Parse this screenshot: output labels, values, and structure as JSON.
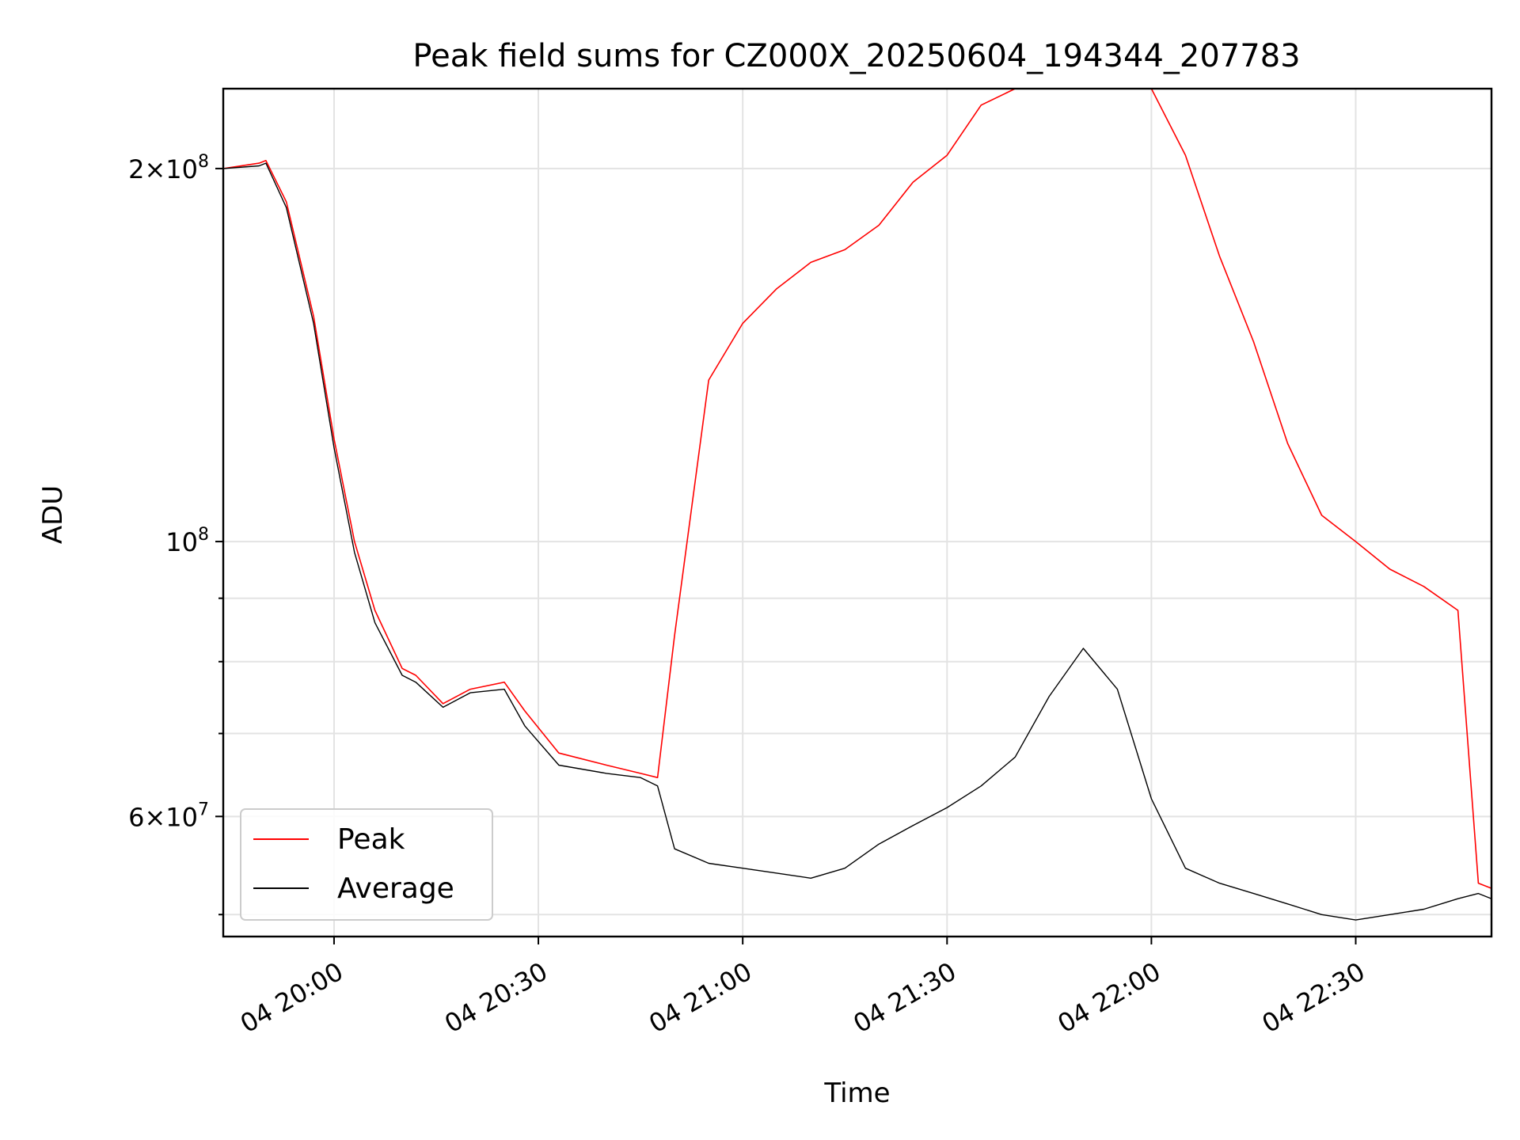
{
  "chart_data": {
    "type": "line",
    "title": "Peak field sums for CZ000X_20250604_194344_207783",
    "xlabel": "Time",
    "ylabel": "ADU",
    "yscale": "log",
    "ylim": [
      48000000,
      232000000
    ],
    "xlim": [
      "2025-06-04 19:43:44",
      "2025-06-04 22:49:56"
    ],
    "x_ticks": [
      {
        "t": "2025-06-04 20:00",
        "label": "04 20:00"
      },
      {
        "t": "2025-06-04 20:30",
        "label": "04 20:30"
      },
      {
        "t": "2025-06-04 21:00",
        "label": "04 21:00"
      },
      {
        "t": "2025-06-04 21:30",
        "label": "04 21:30"
      },
      {
        "t": "2025-06-04 22:00",
        "label": "04 22:00"
      },
      {
        "t": "2025-06-04 22:30",
        "label": "04 22:30"
      }
    ],
    "y_ticks_major": [
      {
        "v": 60000000,
        "mant": "6",
        "exp": "7"
      },
      {
        "v": 100000000,
        "mant": "",
        "exp": "8"
      },
      {
        "v": 200000000,
        "mant": "2",
        "exp": "8"
      }
    ],
    "y_ticks_minor": [
      50000000,
      70000000,
      80000000,
      90000000
    ],
    "grid": true,
    "legend_position": "bottom-left",
    "series": [
      {
        "name": "Peak",
        "color": "#ff0000",
        "x": [
          "2025-06-04 19:43:44",
          "2025-06-04 19:49:00",
          "2025-06-04 19:50:00",
          "2025-06-04 19:53:00",
          "2025-06-04 19:57:00",
          "2025-06-04 20:00:00",
          "2025-06-04 20:03:00",
          "2025-06-04 20:06:00",
          "2025-06-04 20:10:00",
          "2025-06-04 20:12:00",
          "2025-06-04 20:16:00",
          "2025-06-04 20:20:00",
          "2025-06-04 20:25:00",
          "2025-06-04 20:28:00",
          "2025-06-04 20:33:00",
          "2025-06-04 20:40:00",
          "2025-06-04 20:45:00",
          "2025-06-04 20:47:30",
          "2025-06-04 20:50:00",
          "2025-06-04 20:55:00",
          "2025-06-04 21:00:00",
          "2025-06-04 21:05:00",
          "2025-06-04 21:10:00",
          "2025-06-04 21:15:00",
          "2025-06-04 21:20:00",
          "2025-06-04 21:25:00",
          "2025-06-04 21:30:00",
          "2025-06-04 21:35:00",
          "2025-06-04 21:40:00",
          "2025-06-04 21:45:00",
          "2025-06-04 21:50:00",
          "2025-06-04 21:55:00",
          "2025-06-04 22:00:00",
          "2025-06-04 22:05:00",
          "2025-06-04 22:10:00",
          "2025-06-04 22:15:00",
          "2025-06-04 22:20:00",
          "2025-06-04 22:25:00",
          "2025-06-04 22:30:00",
          "2025-06-04 22:35:00",
          "2025-06-04 22:40:00",
          "2025-06-04 22:45:00",
          "2025-06-04 22:48:00",
          "2025-06-04 22:49:56"
        ],
        "y": [
          200000000,
          202000000,
          203000000,
          188000000,
          152000000,
          121000000,
          100000000,
          88000000,
          79000000,
          78000000,
          74000000,
          76000000,
          77000000,
          73000000,
          67500000,
          66000000,
          65000000,
          64500000,
          84000000,
          135000000,
          150000000,
          160000000,
          168000000,
          172000000,
          180000000,
          195000000,
          205000000,
          225000000,
          232000000,
          232000000,
          232000000,
          232000000,
          232000000,
          205000000,
          170000000,
          145000000,
          120000000,
          105000000,
          100000000,
          95000000,
          92000000,
          88000000,
          53000000,
          52500000
        ]
      },
      {
        "name": "Average",
        "color": "#000000",
        "x": [
          "2025-06-04 19:43:44",
          "2025-06-04 19:49:00",
          "2025-06-04 19:50:00",
          "2025-06-04 19:53:00",
          "2025-06-04 19:57:00",
          "2025-06-04 20:00:00",
          "2025-06-04 20:03:00",
          "2025-06-04 20:06:00",
          "2025-06-04 20:10:00",
          "2025-06-04 20:12:00",
          "2025-06-04 20:16:00",
          "2025-06-04 20:20:00",
          "2025-06-04 20:25:00",
          "2025-06-04 20:28:00",
          "2025-06-04 20:33:00",
          "2025-06-04 20:40:00",
          "2025-06-04 20:45:00",
          "2025-06-04 20:47:30",
          "2025-06-04 20:50:00",
          "2025-06-04 20:55:00",
          "2025-06-04 21:00:00",
          "2025-06-04 21:05:00",
          "2025-06-04 21:10:00",
          "2025-06-04 21:15:00",
          "2025-06-04 21:20:00",
          "2025-06-04 21:25:00",
          "2025-06-04 21:30:00",
          "2025-06-04 21:35:00",
          "2025-06-04 21:40:00",
          "2025-06-04 21:45:00",
          "2025-06-04 21:50:00",
          "2025-06-04 21:55:00",
          "2025-06-04 22:00:00",
          "2025-06-04 22:05:00",
          "2025-06-04 22:10:00",
          "2025-06-04 22:15:00",
          "2025-06-04 22:20:00",
          "2025-06-04 22:25:00",
          "2025-06-04 22:30:00",
          "2025-06-04 22:35:00",
          "2025-06-04 22:40:00",
          "2025-06-04 22:45:00",
          "2025-06-04 22:48:00",
          "2025-06-04 22:49:56"
        ],
        "y": [
          200000000,
          201000000,
          202000000,
          186000000,
          150000000,
          119000000,
          98000000,
          86000000,
          78000000,
          77000000,
          73500000,
          75500000,
          76000000,
          71000000,
          66000000,
          65000000,
          64500000,
          63500000,
          56500000,
          55000000,
          54500000,
          54000000,
          53500000,
          54500000,
          57000000,
          59000000,
          61000000,
          63500000,
          67000000,
          75000000,
          82000000,
          76000000,
          62000000,
          54500000,
          53000000,
          52000000,
          51000000,
          50000000,
          49500000,
          50000000,
          50500000,
          51500000,
          52000000,
          51500000
        ]
      }
    ]
  }
}
